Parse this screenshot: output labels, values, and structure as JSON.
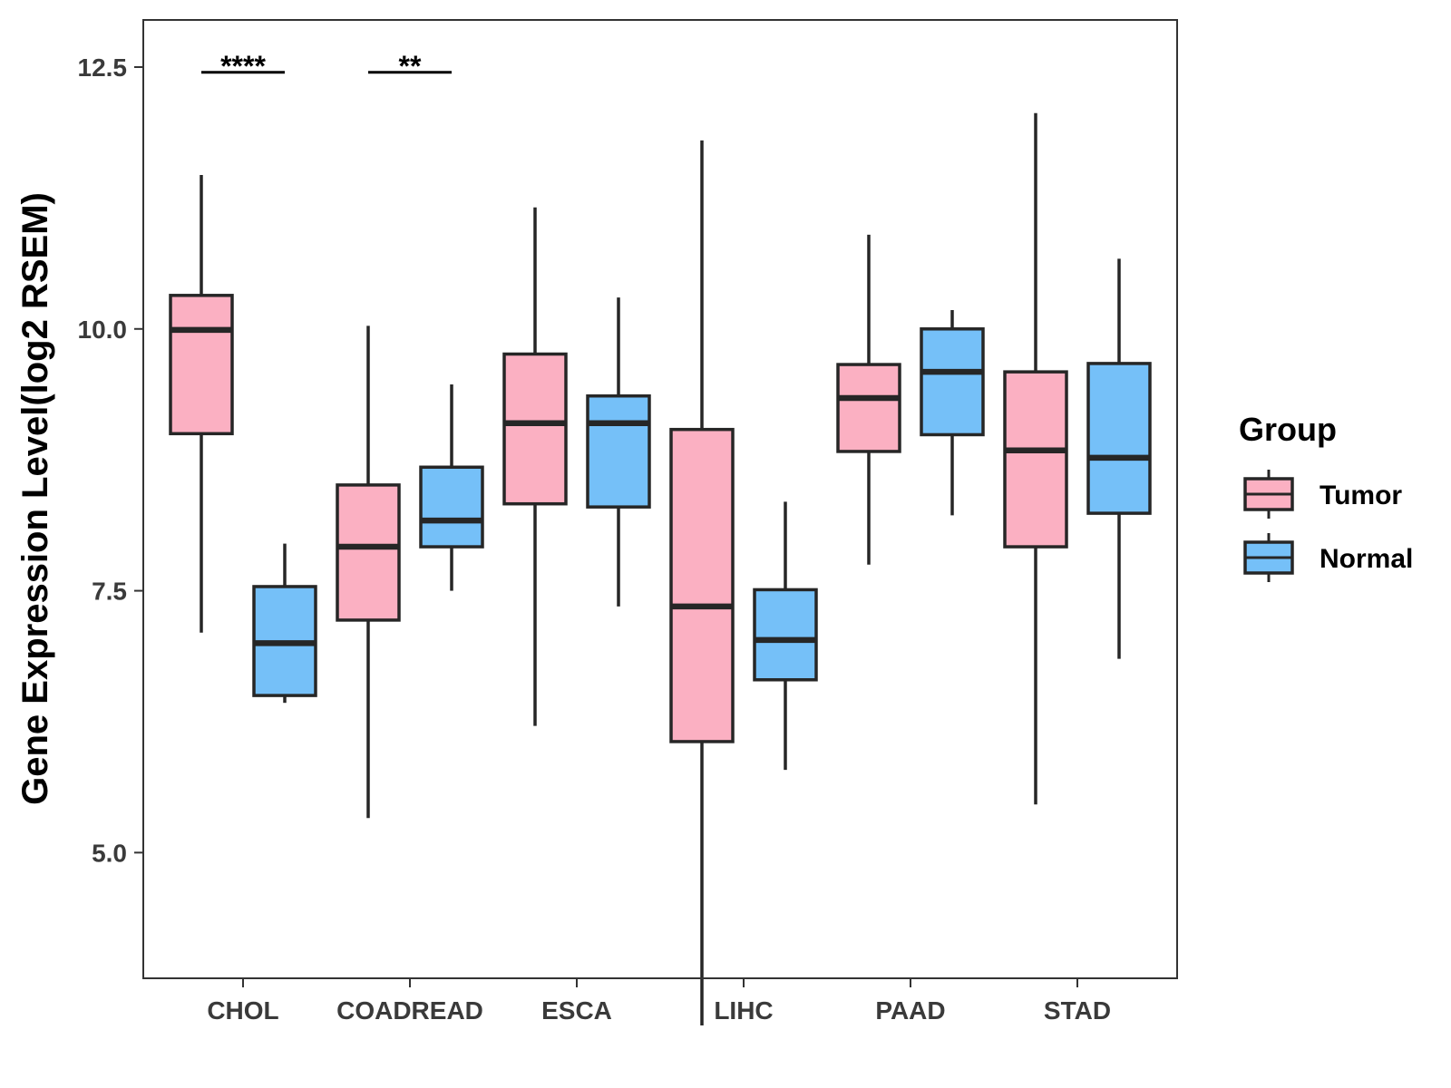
{
  "chart_data": {
    "type": "boxplot",
    "ylabel": "Gene Expression Level(log2 RSEM)",
    "xlabel": "",
    "ylim": [
      3.8,
      12.95
    ],
    "yticks": [
      5.0,
      7.5,
      10.0,
      12.5
    ],
    "ytick_labels": [
      "5.0",
      "7.5",
      "10.0",
      "12.5"
    ],
    "grid": false,
    "categories": [
      "CHOL",
      "COADREAD",
      "ESCA",
      "LIHC",
      "PAAD",
      "STAD"
    ],
    "legend": {
      "title": "Group",
      "position": "right",
      "items": [
        {
          "label": "Tumor",
          "color": "#FBB0C2"
        },
        {
          "label": "Normal",
          "color": "#75C0F8"
        }
      ]
    },
    "series": [
      {
        "name": "Tumor",
        "color": "#FBB0C2",
        "boxes": [
          {
            "category": "CHOL",
            "whisker_low": 7.1,
            "q1": 9.0,
            "median": 9.99,
            "q3": 10.32,
            "whisker_high": 11.47
          },
          {
            "category": "COADREAD",
            "whisker_low": 5.33,
            "q1": 7.22,
            "median": 7.92,
            "q3": 8.51,
            "whisker_high": 10.03
          },
          {
            "category": "ESCA",
            "whisker_low": 6.21,
            "q1": 8.33,
            "median": 9.1,
            "q3": 9.76,
            "whisker_high": 11.16
          },
          {
            "category": "LIHC",
            "whisker_low": 3.35,
            "q1": 6.06,
            "median": 7.35,
            "q3": 9.04,
            "whisker_high": 11.8
          },
          {
            "category": "PAAD",
            "whisker_low": 7.75,
            "q1": 8.83,
            "median": 9.34,
            "q3": 9.66,
            "whisker_high": 10.9
          },
          {
            "category": "STAD",
            "whisker_low": 5.46,
            "q1": 7.92,
            "median": 8.84,
            "q3": 9.59,
            "whisker_high": 12.06
          }
        ]
      },
      {
        "name": "Normal",
        "color": "#75C0F8",
        "boxes": [
          {
            "category": "CHOL",
            "whisker_low": 6.43,
            "q1": 6.5,
            "median": 7.0,
            "q3": 7.54,
            "whisker_high": 7.95
          },
          {
            "category": "COADREAD",
            "whisker_low": 7.5,
            "q1": 7.92,
            "median": 8.17,
            "q3": 8.68,
            "whisker_high": 9.47
          },
          {
            "category": "ESCA",
            "whisker_low": 7.35,
            "q1": 8.3,
            "median": 9.1,
            "q3": 9.36,
            "whisker_high": 10.3
          },
          {
            "category": "LIHC",
            "whisker_low": 5.79,
            "q1": 6.65,
            "median": 7.03,
            "q3": 7.51,
            "whisker_high": 8.35
          },
          {
            "category": "PAAD",
            "whisker_low": 8.22,
            "q1": 8.99,
            "median": 9.59,
            "q3": 10.0,
            "whisker_high": 10.18
          },
          {
            "category": "STAD",
            "whisker_low": 6.85,
            "q1": 8.24,
            "median": 8.77,
            "q3": 9.67,
            "whisker_high": 10.67
          }
        ]
      }
    ],
    "annotations": [
      {
        "category": "CHOL",
        "label": "****",
        "y": 12.45
      },
      {
        "category": "COADREAD",
        "label": "**",
        "y": 12.45
      }
    ]
  }
}
